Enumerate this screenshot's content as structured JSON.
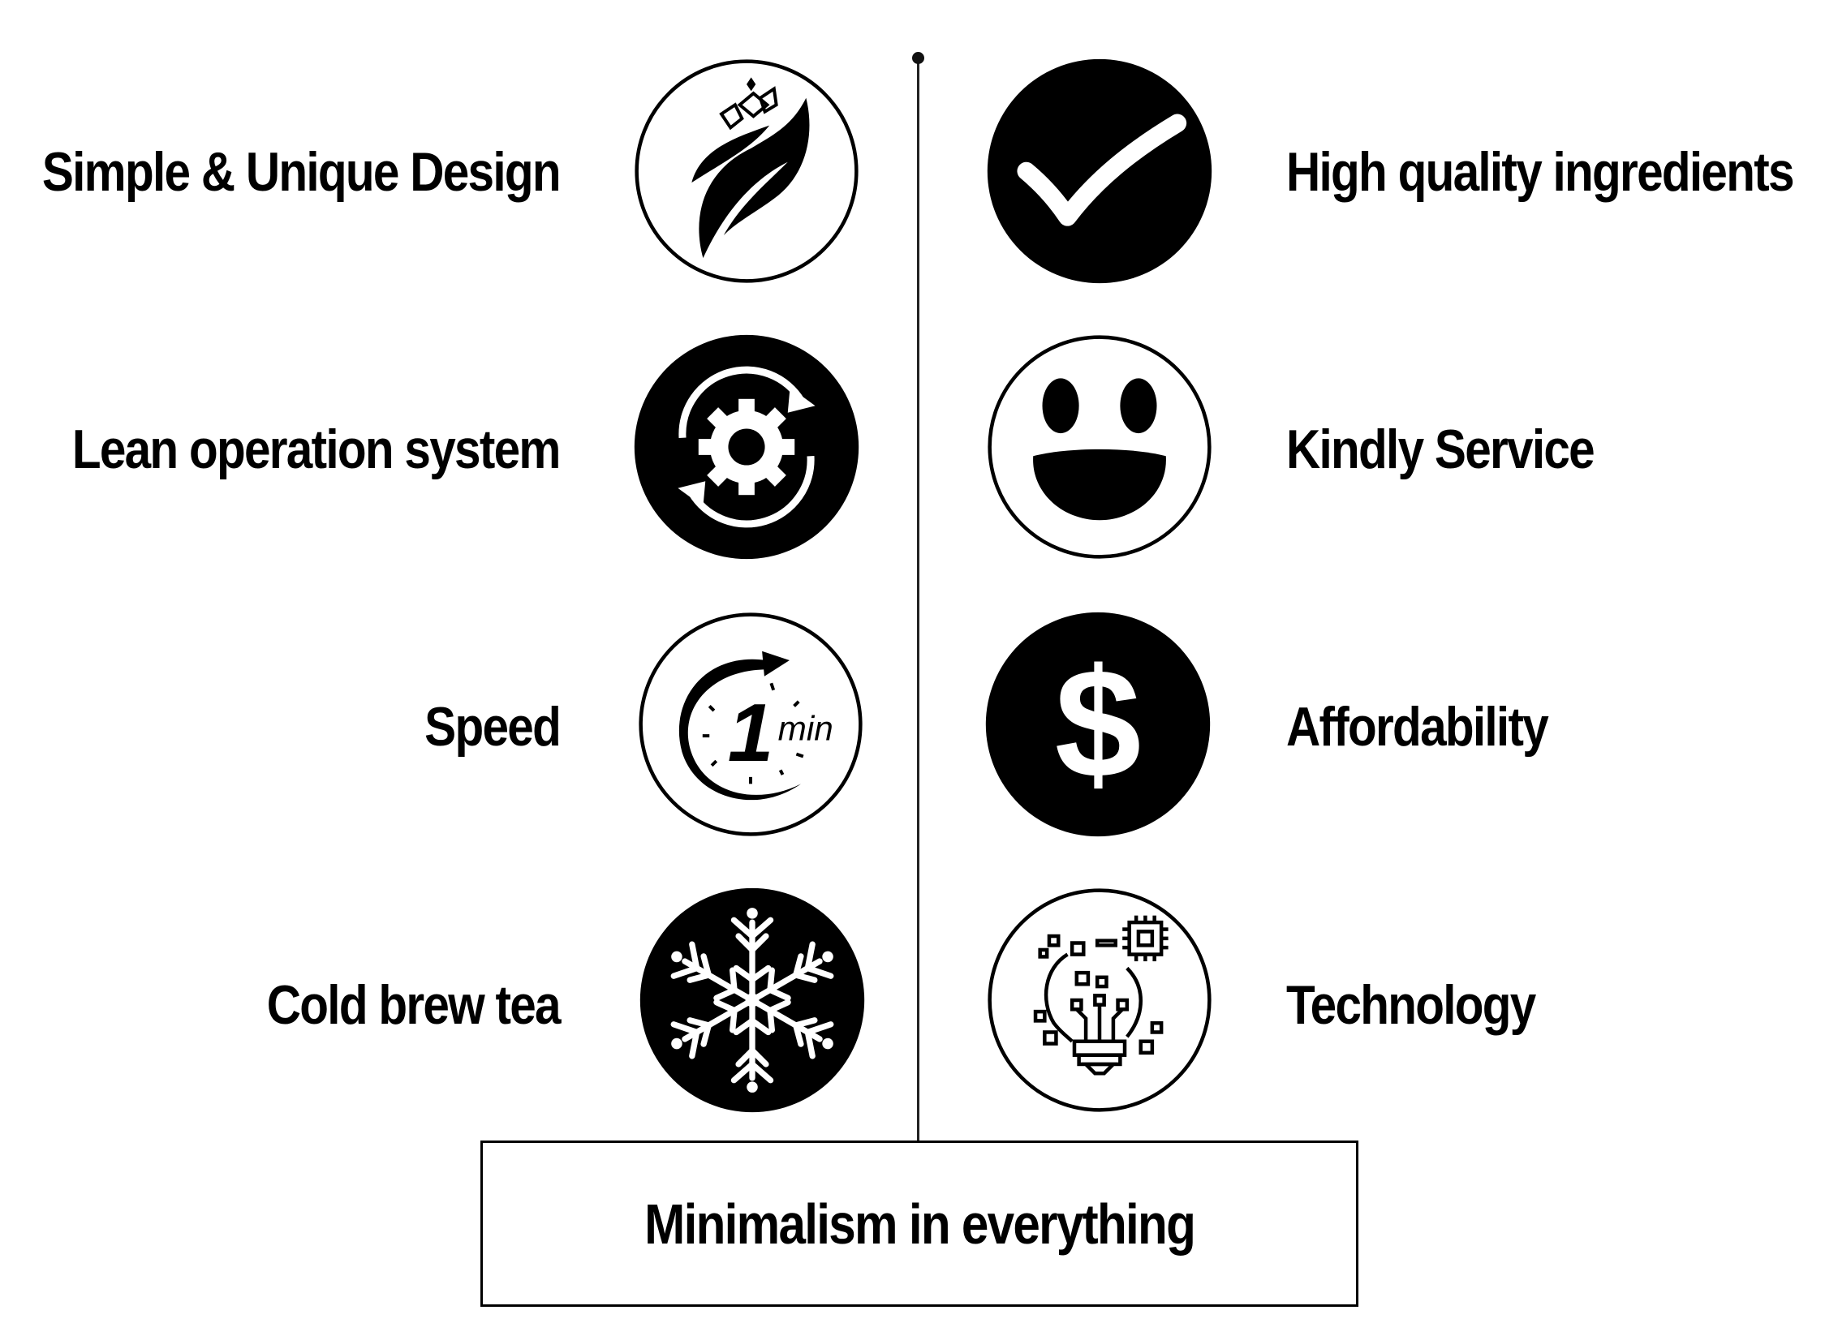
{
  "left_items": [
    {
      "label": "Simple & Unique Design",
      "icon": "leaf-icon"
    },
    {
      "label": "Lean operation system",
      "icon": "gear-cycle-icon"
    },
    {
      "label": "Speed",
      "icon": "one-minute-timer-icon"
    },
    {
      "label": "Cold brew tea",
      "icon": "snowflake-icon"
    }
  ],
  "right_items": [
    {
      "label": "High quality ingredients",
      "icon": "checkmark-icon"
    },
    {
      "label": "Kindly Service",
      "icon": "smiley-face-icon"
    },
    {
      "label": "Affordability",
      "icon": "dollar-icon"
    },
    {
      "label": "Technology",
      "icon": "lightbulb-chip-icon"
    }
  ],
  "icon_text": {
    "timer_number": "1",
    "timer_unit": "min",
    "dollar": "$"
  },
  "footer": {
    "text": "Minimalism in everything"
  },
  "colors": {
    "ink": "#000000",
    "background": "#ffffff"
  }
}
